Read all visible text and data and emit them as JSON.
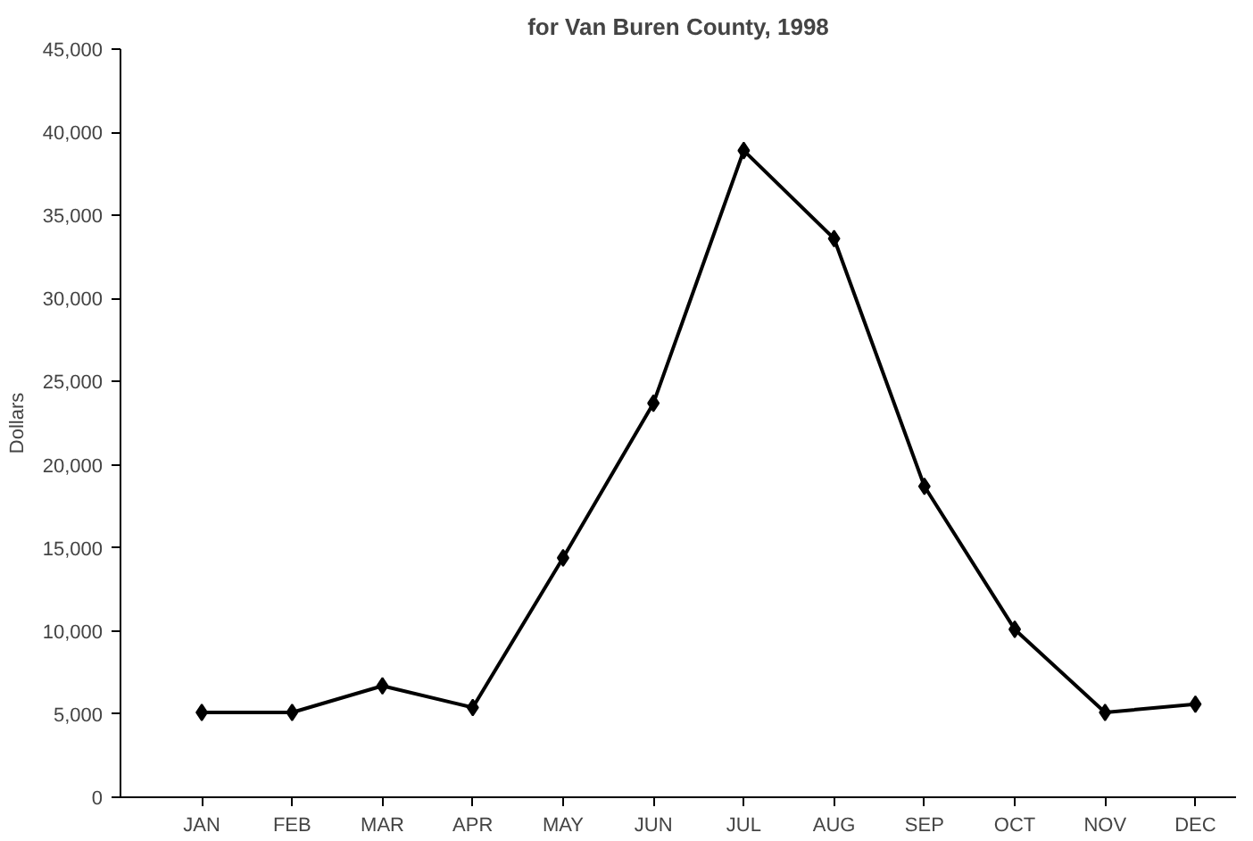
{
  "chart_data": {
    "type": "line",
    "title": "for Van Buren County, 1998",
    "ylabel": "Dollars",
    "categories": [
      "JAN",
      "FEB",
      "MAR",
      "APR",
      "MAY",
      "JUN",
      "JUL",
      "AUG",
      "SEP",
      "OCT",
      "NOV",
      "DEC"
    ],
    "series": [
      {
        "color": "#000000",
        "values": [
          5100,
          5100,
          6700,
          5400,
          14400,
          23700,
          38900,
          33600,
          18700,
          10100,
          5100,
          5600
        ]
      }
    ],
    "ylim": [
      0,
      45000
    ],
    "yticks": [
      0,
      {
        "value": 5000,
        "label": "5,000"
      },
      {
        "value": 10000,
        "label": "10,000"
      },
      {
        "value": 15000,
        "label": "15,000"
      },
      {
        "value": 20000,
        "label": "20,000"
      },
      {
        "value": 25000,
        "label": "25,000"
      },
      {
        "value": 30000,
        "label": "30,000"
      },
      {
        "value": 35000,
        "label": "35,000"
      },
      {
        "value": 40000,
        "label": "40,000"
      },
      {
        "value": 45000,
        "label": "45,000"
      }
    ],
    "grid": false,
    "marker": "diamond",
    "line_style": "solid"
  }
}
